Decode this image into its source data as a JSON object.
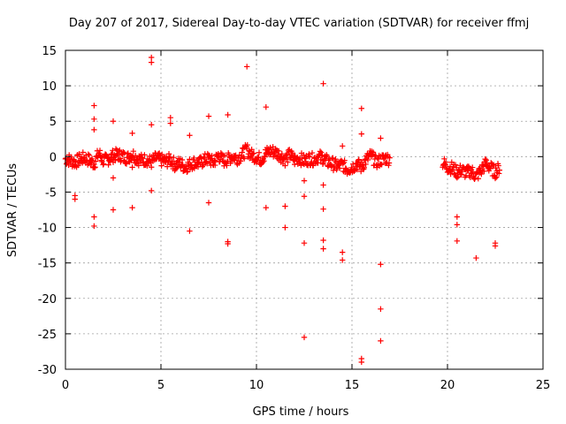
{
  "chart_data": {
    "type": "scatter",
    "title": "Day 207 of 2017, Sidereal Day-to-day VTEC variation (SDTVAR) for receiver ffmj",
    "xlabel": "GPS time / hours",
    "ylabel": "SDTVAR / TECUs",
    "xlim": [
      0,
      25
    ],
    "ylim": [
      -30,
      15
    ],
    "xticks": [
      0,
      5,
      10,
      15,
      20,
      25
    ],
    "yticks": [
      15,
      10,
      5,
      0,
      -5,
      -10,
      -15,
      -20,
      -25,
      -30
    ],
    "grid": true,
    "marker": "plus",
    "color": "#ff0000",
    "series": [
      {
        "name": "SDTVAR",
        "x": [
          0.5,
          0.5,
          1.5,
          1.5,
          1.5,
          1.5,
          1.5,
          2.5,
          2.5,
          2.5,
          3.5,
          3.5,
          3.5,
          4.5,
          4.5,
          4.5,
          4.5,
          5.5,
          5.5,
          6.5,
          6.5,
          7.5,
          7.5,
          8.5,
          8.5,
          8.5,
          9.5,
          10.5,
          10.5,
          11.5,
          11.5,
          12.5,
          12.5,
          12.5,
          12.5,
          13.5,
          13.5,
          13.5,
          13.5,
          13.5,
          14.5,
          14.5,
          14.5,
          15.5,
          15.5,
          15.5,
          15.5,
          16.5,
          16.5,
          16.5,
          16.5,
          20.5,
          20.5,
          20.5,
          21.5,
          22.5,
          22.5
        ],
        "y": [
          -5.5,
          -6,
          7.2,
          5.3,
          3.8,
          -8.5,
          -9.8,
          5,
          -3,
          -7.5,
          3.3,
          -1.5,
          -7.2,
          14,
          13.3,
          4.5,
          -4.8,
          5.5,
          4.7,
          3,
          -10.5,
          5.7,
          -6.5,
          5.9,
          -12,
          -12.3,
          12.7,
          7,
          -7.2,
          -7,
          -10,
          -3.4,
          -5.6,
          -12.2,
          -25.5,
          10.3,
          -4,
          -7.4,
          -11.8,
          -13,
          -13.5,
          -14.6,
          1.5,
          6.8,
          3.2,
          -28.5,
          -29,
          2.6,
          -15.2,
          -21.5,
          -26,
          -8.5,
          -9.6,
          -11.9,
          -14.3,
          -12.2,
          -12.6
        ],
        "band_x": [
          0.0,
          0.25,
          0.5,
          0.75,
          1.0,
          1.25,
          1.5,
          1.75,
          2.0,
          2.25,
          2.5,
          2.75,
          3.0,
          3.25,
          3.5,
          3.75,
          4.0,
          4.25,
          4.5,
          4.75,
          5.0,
          5.25,
          5.5,
          5.75,
          6.0,
          6.25,
          6.5,
          6.75,
          7.0,
          7.25,
          7.5,
          7.75,
          8.0,
          8.25,
          8.5,
          8.75,
          9.0,
          9.25,
          9.5,
          9.75,
          10.0,
          10.25,
          10.5,
          10.75,
          11.0,
          11.25,
          11.5,
          11.75,
          12.0,
          12.25,
          12.5,
          12.75,
          13.0,
          13.25,
          13.5,
          13.75,
          14.0,
          14.25,
          14.5,
          14.75,
          15.0,
          15.25,
          15.5,
          15.75,
          16.0,
          16.25,
          16.5,
          16.75,
          17.0,
          19.75,
          20.0,
          20.25,
          20.5,
          20.75,
          21.0,
          21.25,
          21.5,
          21.75,
          22.0,
          22.25,
          22.5,
          22.75
        ],
        "band_y": [
          -0.3,
          -0.5,
          -0.8,
          -0.4,
          -0.2,
          -0.5,
          -1.0,
          0.5,
          -0.6,
          -0.3,
          0.1,
          0.3,
          0.0,
          -0.2,
          0.4,
          -0.3,
          -0.5,
          -0.4,
          -0.8,
          -0.2,
          -0.5,
          -0.7,
          -0.4,
          -1.2,
          -0.9,
          -1.5,
          -1.1,
          -0.8,
          -1.0,
          -0.5,
          -0.3,
          -0.9,
          0.2,
          -0.6,
          -0.4,
          0.1,
          -0.2,
          0.3,
          1.0,
          0.2,
          0.0,
          -0.4,
          0.5,
          0.8,
          0.6,
          0.2,
          -0.4,
          0.3,
          -0.5,
          -0.2,
          -0.6,
          -0.3,
          -0.4,
          0.0,
          -0.2,
          -0.8,
          -1.0,
          -1.4,
          -1.1,
          -1.8,
          -1.5,
          -1.0,
          -1.5,
          -0.4,
          0.2,
          -0.8,
          -0.5,
          -0.2,
          -0.4,
          -0.8,
          -1.5,
          -1.6,
          -2.2,
          -1.9,
          -2.3,
          -2.0,
          -2.8,
          -2.0,
          -1.0,
          -1.6,
          -2.2,
          -1.5
        ],
        "band_spread": 0.9
      }
    ]
  }
}
